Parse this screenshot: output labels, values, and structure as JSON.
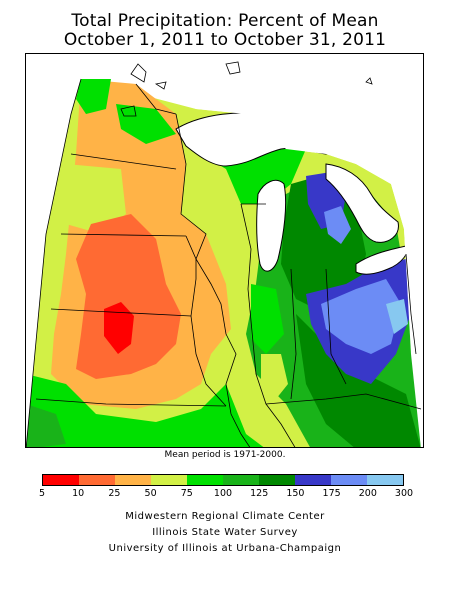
{
  "title": {
    "line1": "Total Precipitation: Percent of Mean",
    "line2": "October 1, 2011 to October 31, 2011"
  },
  "note": "Mean period is 1971-2000.",
  "legend": {
    "colors": [
      "#ff0000",
      "#ff6a33",
      "#ffb347",
      "#d2f046",
      "#00e000",
      "#19b319",
      "#008800",
      "#3838c8",
      "#6c8cf5",
      "#87c8f0"
    ],
    "labels": [
      "5",
      "10",
      "25",
      "50",
      "75",
      "100",
      "125",
      "150",
      "175",
      "200",
      "300"
    ]
  },
  "credits": [
    "Midwestern Regional Climate Center",
    "Illinois State Water Survey",
    "University of Illinois at Urbana-Champaign"
  ]
}
